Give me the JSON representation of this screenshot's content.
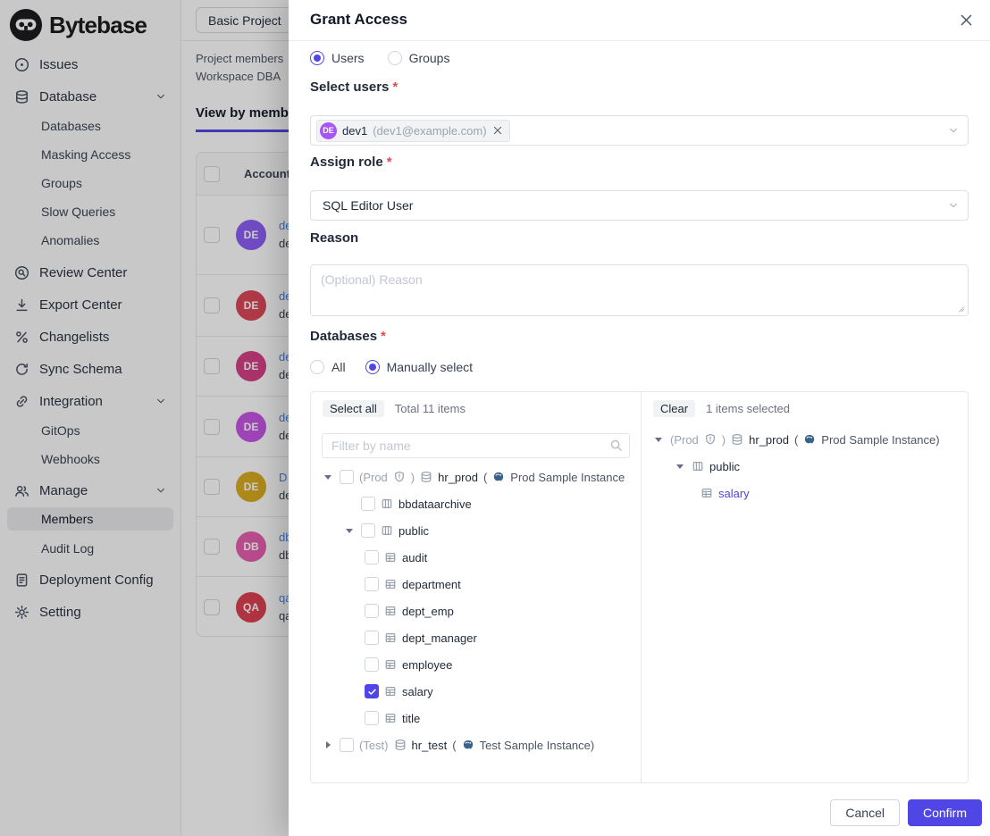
{
  "accent": "#4f46e5",
  "sidebar": {
    "logo": "Bytebase",
    "items": [
      {
        "label": "Issues"
      },
      {
        "label": "Database"
      },
      {
        "label": "Databases"
      },
      {
        "label": "Masking Access"
      },
      {
        "label": "Groups"
      },
      {
        "label": "Slow Queries"
      },
      {
        "label": "Anomalies"
      },
      {
        "label": "Review Center"
      },
      {
        "label": "Export Center"
      },
      {
        "label": "Changelists"
      },
      {
        "label": "Sync Schema"
      },
      {
        "label": "Integration"
      },
      {
        "label": "GitOps"
      },
      {
        "label": "Webhooks"
      },
      {
        "label": "Manage"
      },
      {
        "label": "Members"
      },
      {
        "label": "Audit Log"
      },
      {
        "label": "Deployment Config"
      },
      {
        "label": "Setting"
      }
    ]
  },
  "page": {
    "project_badge": "Basic Project",
    "desc_line1": "Project members",
    "desc_line2": "Workspace DBA",
    "active_tab": "View by members",
    "table": {
      "account_header": "Account",
      "rows": [
        {
          "initials": "DE",
          "color": "#8b5cf6",
          "name": "de",
          "email": "de"
        },
        {
          "initials": "DE",
          "color": "#dc4455",
          "name": "de",
          "email": "de"
        },
        {
          "initials": "DE",
          "color": "#d63d84",
          "name": "de",
          "email": "de"
        },
        {
          "initials": "DE",
          "color": "#c653e6",
          "name": "de",
          "email": "de"
        },
        {
          "initials": "DE",
          "color": "#d9a91e",
          "name": "D",
          "email": "de"
        },
        {
          "initials": "DB",
          "color": "#e75cae",
          "name": "db",
          "email": "db"
        },
        {
          "initials": "QA",
          "color": "#dc3d4e",
          "name": "qa",
          "email": "qa"
        }
      ]
    }
  },
  "modal": {
    "title": "Grant Access",
    "principal": {
      "users_label": "Users",
      "groups_label": "Groups",
      "selected": "Users"
    },
    "select_users": {
      "label": "Select users",
      "required": "*",
      "tag_initials": "DE",
      "tag_color": "#a855f7",
      "tag_name": "dev1",
      "tag_email": "(dev1@example.com)"
    },
    "assign_role": {
      "label": "Assign role",
      "required": "*",
      "value": "SQL Editor User"
    },
    "reason": {
      "label": "Reason",
      "placeholder": "(Optional) Reason"
    },
    "databases": {
      "label": "Databases",
      "required": "*",
      "all_label": "All",
      "manual_label": "Manually select",
      "selected": "Manually select"
    },
    "selector": {
      "left": {
        "select_all": "Select all",
        "total": "Total 11 items",
        "filter_placeholder": "Filter by name",
        "tree": [
          {
            "env": "(Prod",
            "env_close": ")",
            "name": "hr_prod",
            "inst_open": "(",
            "instance": "Prod Sample Instance"
          },
          {
            "name": "bbdataarchive"
          },
          {
            "name": "public"
          },
          {
            "name": "audit"
          },
          {
            "name": "department"
          },
          {
            "name": "dept_emp"
          },
          {
            "name": "dept_manager"
          },
          {
            "name": "employee"
          },
          {
            "name": "salary",
            "checked": true
          },
          {
            "name": "title"
          },
          {
            "env": "(Test)",
            "name": "hr_test",
            "inst_open": "(",
            "instance": "Test Sample Instance)"
          }
        ]
      },
      "right": {
        "clear": "Clear",
        "count": "1 items selected",
        "tree": [
          {
            "env": "(Prod",
            "env_close": ")",
            "name": "hr_prod",
            "inst_open": "(",
            "instance": "Prod Sample Instance)"
          },
          {
            "name": "public"
          },
          {
            "name": "salary"
          }
        ]
      }
    },
    "footer": {
      "cancel": "Cancel",
      "confirm": "Confirm"
    }
  }
}
